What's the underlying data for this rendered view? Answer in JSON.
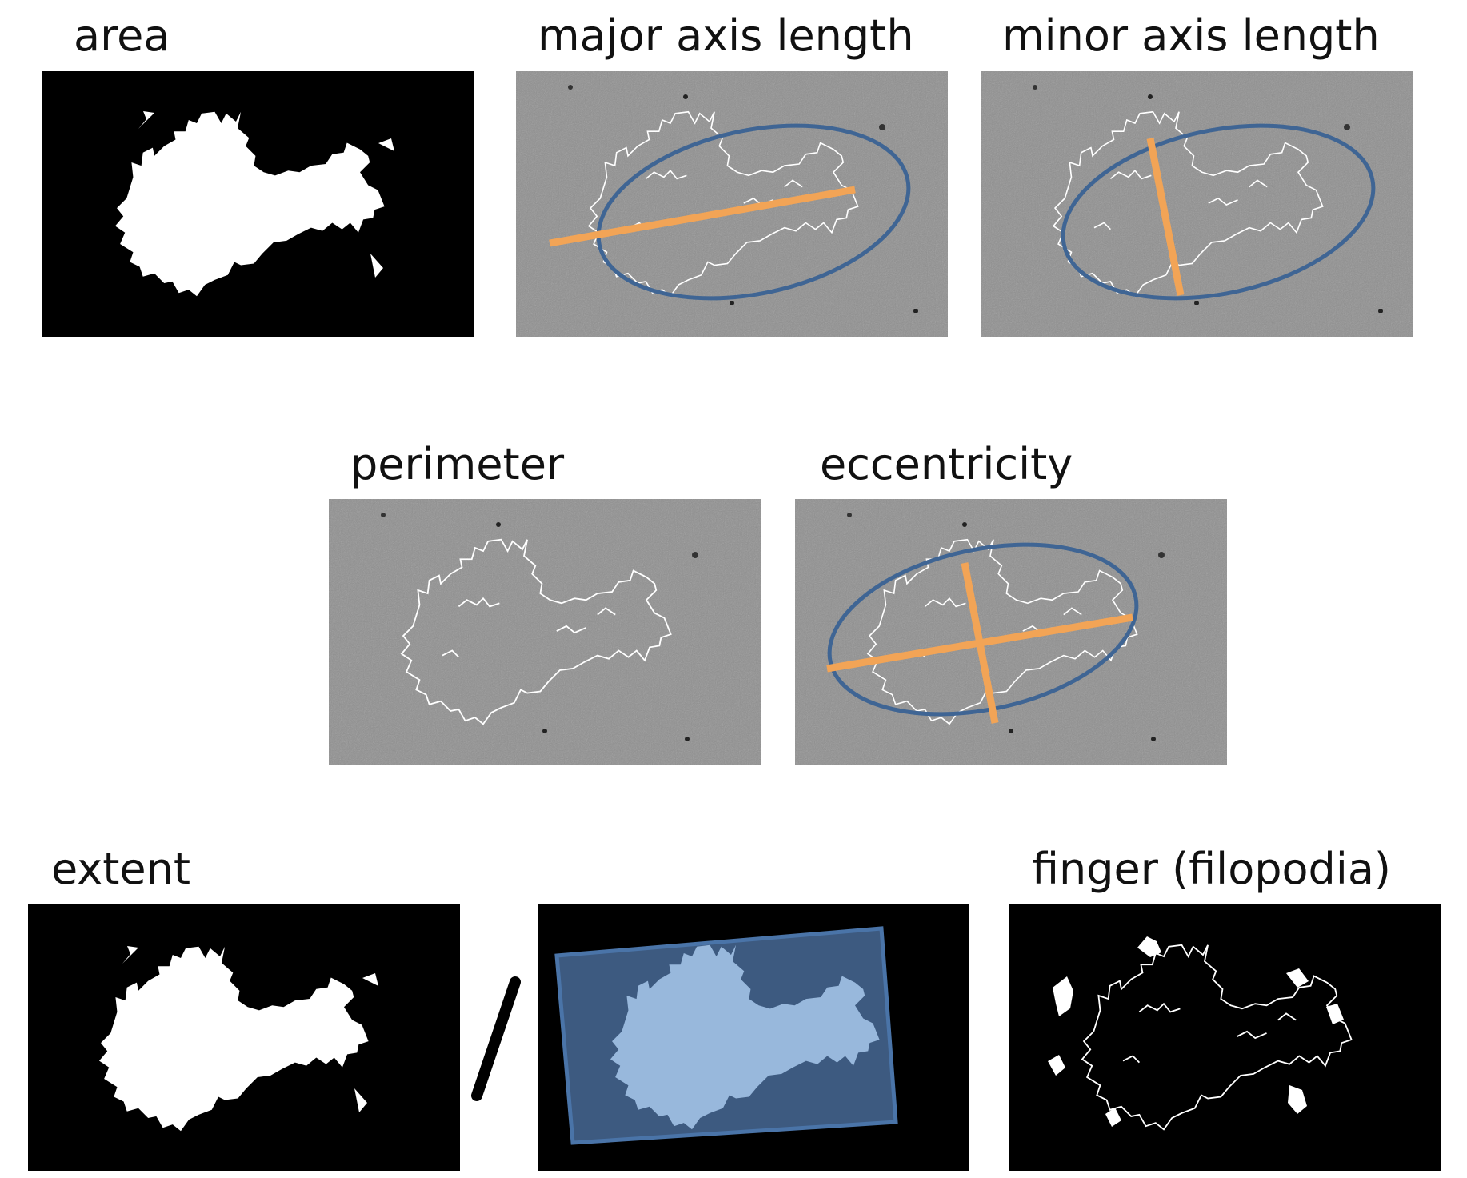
{
  "labels": {
    "area": "area",
    "major_axis_length": "major axis length",
    "minor_axis_length": "minor axis length",
    "perimeter": "perimeter",
    "eccentricity": "eccentricity",
    "extent": "extent",
    "finger": "finger (filopodia)"
  },
  "colors": {
    "ellipse": "#3f6594",
    "axis": "#f2a456",
    "mask": "#ffffff",
    "background_black": "#000000",
    "background_gray": "#8f8f8f",
    "bounding_box_fill": "#3d5a80",
    "bounding_box_stroke": "#4a74a8",
    "mask_in_box": "#98b8dc"
  },
  "icons": {
    "divide": "slash-icon"
  }
}
